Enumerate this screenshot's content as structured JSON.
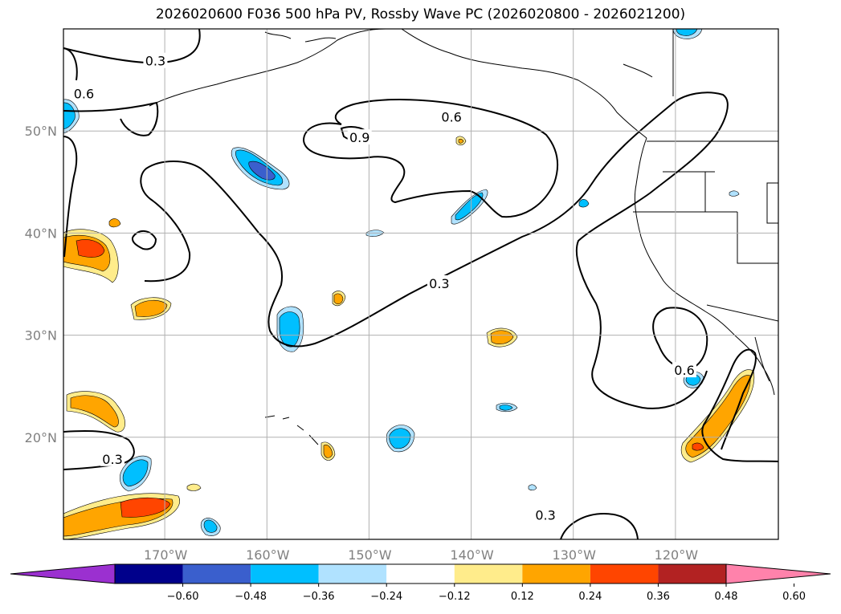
{
  "title": "2026020600 F036 500 hPa PV, Rossby Wave PC (2026020800 - 2026021200)",
  "map": {
    "lon_range": [
      -180,
      -110
    ],
    "lat_range": [
      10,
      60
    ],
    "lat_labels": [
      {
        "lat": 50,
        "text": "50°N"
      },
      {
        "lat": 40,
        "text": "40°N"
      },
      {
        "lat": 30,
        "text": "30°N"
      },
      {
        "lat": 20,
        "text": "20°N"
      }
    ],
    "lon_labels": [
      {
        "lon": -170,
        "text": "170°W"
      },
      {
        "lon": -160,
        "text": "160°W"
      },
      {
        "lon": -150,
        "text": "150°W"
      },
      {
        "lon": -140,
        "text": "140°W"
      },
      {
        "lon": -130,
        "text": "130°W"
      },
      {
        "lon": -120,
        "text": "120°W"
      }
    ],
    "gridlines": true,
    "contour_labels": [
      {
        "text": "0.3",
        "lon": -171.0,
        "lat": 56.8
      },
      {
        "text": "0.6",
        "lon": -178.0,
        "lat": 53.6
      },
      {
        "text": "0.9",
        "lon": -151.0,
        "lat": 49.3
      },
      {
        "text": "0.6",
        "lon": -142.0,
        "lat": 51.3
      },
      {
        "text": "0.3",
        "lon": -143.2,
        "lat": 35.0
      },
      {
        "text": "0.6",
        "lon": -119.2,
        "lat": 26.5
      },
      {
        "text": "0.3",
        "lon": -175.2,
        "lat": 17.8
      },
      {
        "text": "0.3",
        "lon": -132.8,
        "lat": 12.3
      }
    ]
  },
  "colorbar": {
    "colors": [
      "#9b30d0",
      "#00008b",
      "#3a5fcd",
      "#00bfff",
      "#b0e2ff",
      "#ffffff",
      "#ffec8b",
      "#ffa500",
      "#ff4500",
      "#b22222",
      "#ff82ab"
    ],
    "ticks": [
      "−0.60",
      "−0.48",
      "−0.36",
      "−0.24",
      "−0.12",
      "0.12",
      "0.24",
      "0.36",
      "0.48",
      "0.60"
    ]
  }
}
